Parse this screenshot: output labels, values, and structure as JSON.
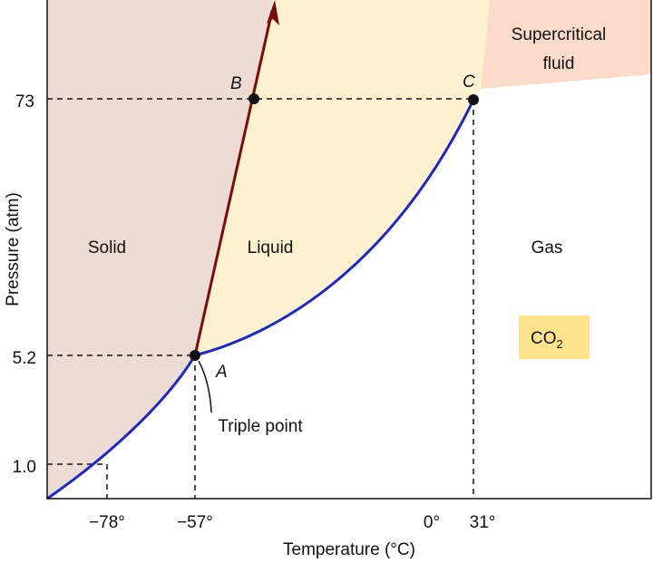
{
  "diagram": {
    "axes": {
      "x_title": "Temperature (°C)",
      "y_title": "Pressure (atm)",
      "x_ticks": [
        "−78°",
        "−57°",
        "0°",
        "31°"
      ],
      "y_ticks": [
        "73",
        "5.2",
        "1.0"
      ]
    },
    "regions": {
      "solid": "Solid",
      "liquid": "Liquid",
      "gas": "Gas",
      "supercritical": [
        "Supercritical",
        "fluid"
      ]
    },
    "points": {
      "a": "A",
      "b": "B",
      "c": "C"
    },
    "annotation": "Triple point",
    "formula": {
      "base": "CO",
      "subscript": "2"
    }
  }
}
